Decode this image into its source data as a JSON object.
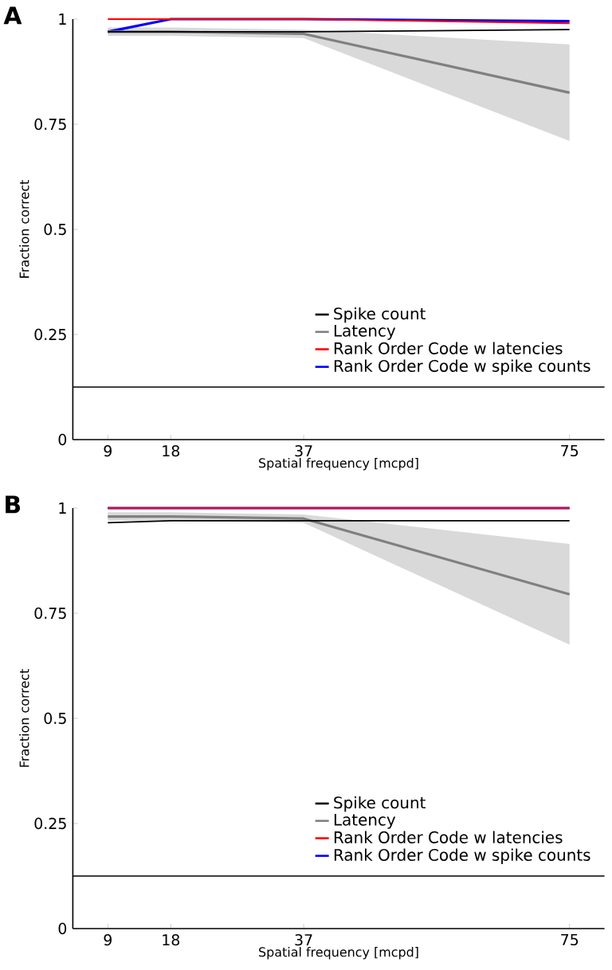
{
  "chart_data": [
    {
      "type": "line",
      "title": "A",
      "xlabel": "Spatial frequency [mcpd]",
      "ylabel": "Fraction correct",
      "x": [
        9,
        18,
        37,
        75
      ],
      "xlim": [
        4,
        80
      ],
      "xticks": [
        9,
        18,
        37,
        75
      ],
      "ylim": [
        0,
        1
      ],
      "yticks": [
        0,
        0.25,
        0.5,
        0.75,
        1
      ],
      "legend": "bottom right",
      "series": [
        {
          "name": "Spike count",
          "color": "#000000",
          "values": [
            0.97,
            0.97,
            0.97,
            0.975
          ]
        },
        {
          "name": "Latency",
          "color": "#808080",
          "values": [
            0.97,
            0.97,
            0.965,
            0.825
          ],
          "lower": [
            0.96,
            0.96,
            0.955,
            0.71
          ],
          "upper": [
            0.98,
            0.98,
            0.975,
            0.94
          ]
        },
        {
          "name": "Rank Order Code w latencies",
          "color": "#ff0000",
          "values": [
            1,
            1,
            1,
            0.99
          ]
        },
        {
          "name": "Rank Order Code w spike counts",
          "color": "#0000ff",
          "values": [
            0.97,
            1,
            1,
            0.995
          ]
        }
      ],
      "ref_lines": [
        {
          "axis": "y",
          "value": 0.125,
          "color": "#000000"
        }
      ]
    },
    {
      "type": "line",
      "title": "B",
      "xlabel": "Spatial frequency [mcpd]",
      "ylabel": "Fraction correct",
      "x": [
        9,
        18,
        37,
        75
      ],
      "xlim": [
        4,
        80
      ],
      "xticks": [
        9,
        18,
        37,
        75
      ],
      "ylim": [
        0,
        1
      ],
      "yticks": [
        0,
        0.25,
        0.5,
        0.75,
        1
      ],
      "legend": "bottom right",
      "series": [
        {
          "name": "Spike count",
          "color": "#000000",
          "values": [
            0.965,
            0.97,
            0.97,
            0.97
          ]
        },
        {
          "name": "Latency",
          "color": "#808080",
          "values": [
            0.98,
            0.98,
            0.975,
            0.795
          ],
          "lower": [
            0.97,
            0.97,
            0.965,
            0.675
          ],
          "upper": [
            0.99,
            0.99,
            0.985,
            0.915
          ]
        },
        {
          "name": "Rank Order Code w latencies",
          "color": "#ff0000",
          "values": [
            1,
            1,
            1,
            1
          ]
        },
        {
          "name": "Rank Order Code w spike counts",
          "color": "#0000ff",
          "values": [
            1,
            1,
            1,
            1
          ]
        }
      ],
      "ref_lines": [
        {
          "axis": "y",
          "value": 0.125,
          "color": "#000000"
        }
      ]
    }
  ]
}
